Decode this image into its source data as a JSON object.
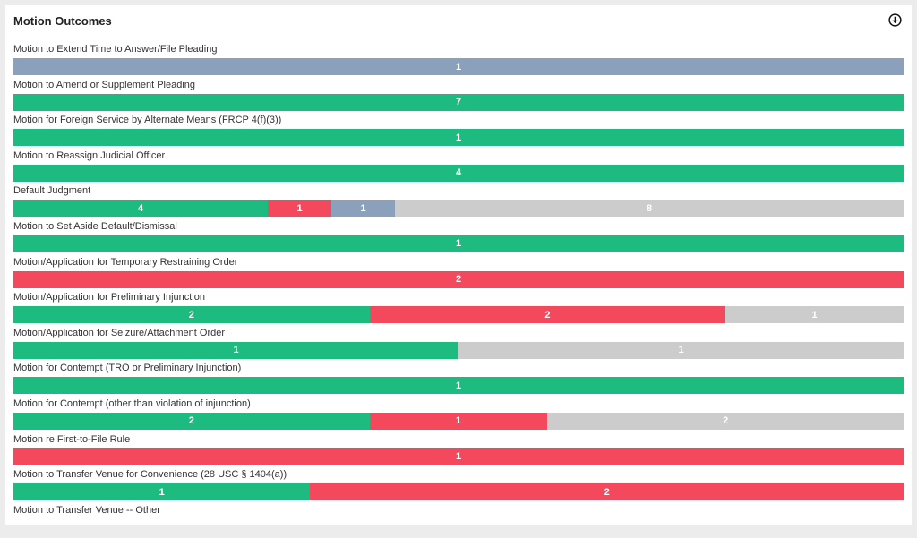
{
  "panel": {
    "title": "Motion Outcomes",
    "download_icon": "download-circle-icon"
  },
  "colors": {
    "granted": "#1dbb80",
    "denied": "#f4485d",
    "other": "#8aa0bb",
    "pending": "#cccccc"
  },
  "motions": [
    {
      "label": "Motion to Extend Time to Answer/File Pleading",
      "segments": [
        {
          "status": "other",
          "count": 1
        }
      ]
    },
    {
      "label": "Motion to Amend or Supplement Pleading",
      "segments": [
        {
          "status": "granted",
          "count": 7
        }
      ]
    },
    {
      "label": "Motion for Foreign Service by Alternate Means (FRCP 4(f)(3))",
      "segments": [
        {
          "status": "granted",
          "count": 1
        }
      ]
    },
    {
      "label": "Motion to Reassign Judicial Officer",
      "segments": [
        {
          "status": "granted",
          "count": 4
        }
      ]
    },
    {
      "label": "Default Judgment",
      "segments": [
        {
          "status": "granted",
          "count": 4
        },
        {
          "status": "denied",
          "count": 1
        },
        {
          "status": "other",
          "count": 1
        },
        {
          "status": "pending",
          "count": 8
        }
      ]
    },
    {
      "label": "Motion to Set Aside Default/Dismissal",
      "segments": [
        {
          "status": "granted",
          "count": 1
        }
      ]
    },
    {
      "label": "Motion/Application for Temporary Restraining Order",
      "segments": [
        {
          "status": "denied",
          "count": 2
        }
      ]
    },
    {
      "label": "Motion/Application for Preliminary Injunction",
      "segments": [
        {
          "status": "granted",
          "count": 2
        },
        {
          "status": "denied",
          "count": 2
        },
        {
          "status": "pending",
          "count": 1
        }
      ]
    },
    {
      "label": "Motion/Application for Seizure/Attachment Order",
      "segments": [
        {
          "status": "granted",
          "count": 1
        },
        {
          "status": "pending",
          "count": 1
        }
      ]
    },
    {
      "label": "Motion for Contempt (TRO or Preliminary Injunction)",
      "segments": [
        {
          "status": "granted",
          "count": 1
        }
      ]
    },
    {
      "label": "Motion for Contempt (other than violation of injunction)",
      "segments": [
        {
          "status": "granted",
          "count": 2
        },
        {
          "status": "denied",
          "count": 1
        },
        {
          "status": "pending",
          "count": 2
        }
      ]
    },
    {
      "label": "Motion re First-to-File Rule",
      "segments": [
        {
          "status": "denied",
          "count": 1
        }
      ]
    },
    {
      "label": "Motion to Transfer Venue for Convenience (28 USC § 1404(a))",
      "segments": [
        {
          "status": "granted",
          "count": 1
        },
        {
          "status": "denied",
          "count": 2
        }
      ]
    },
    {
      "label": "Motion to Transfer Venue -- Other",
      "segments": []
    }
  ]
}
